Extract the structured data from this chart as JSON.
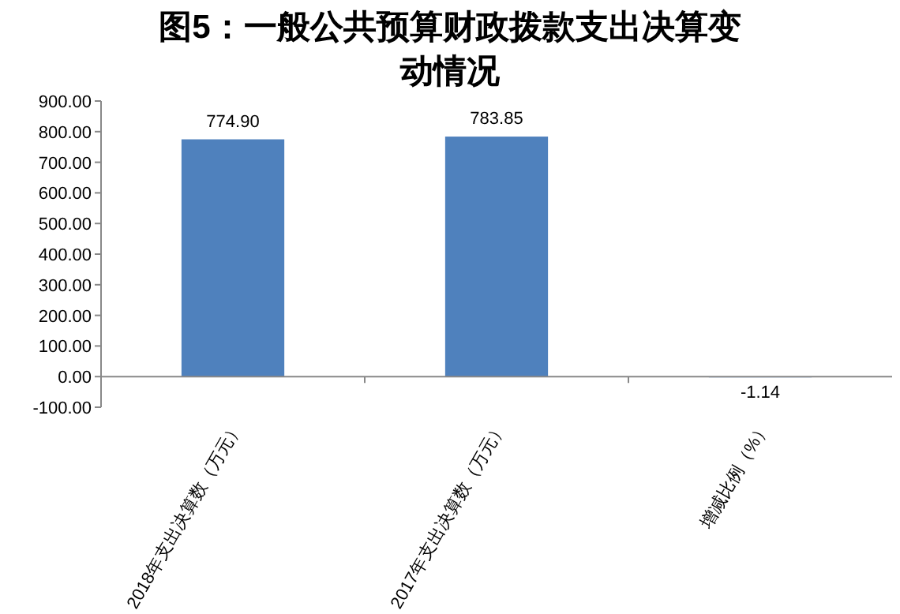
{
  "chart_data": {
    "type": "bar",
    "title": "图5：一般公共预算财政拨款支出决算变动情况",
    "categories": [
      "2018年支出决算数（万元）",
      "2017年支出决算数（万元）",
      "增减比例（%）"
    ],
    "values": [
      774.9,
      783.85,
      -1.14
    ],
    "value_labels": [
      "774.90",
      "783.85",
      "-1.14"
    ],
    "color": "#4f81bd",
    "ylim": [
      -100,
      900
    ],
    "yticks": [
      {
        "value": -100,
        "label": "-100.00"
      },
      {
        "value": 0,
        "label": "0.00"
      },
      {
        "value": 100,
        "label": "100.00"
      },
      {
        "value": 200,
        "label": "200.00"
      },
      {
        "value": 300,
        "label": "300.00"
      },
      {
        "value": 400,
        "label": "400.00"
      },
      {
        "value": 500,
        "label": "500.00"
      },
      {
        "value": 600,
        "label": "600.00"
      },
      {
        "value": 700,
        "label": "700.00"
      },
      {
        "value": 800,
        "label": "800.00"
      },
      {
        "value": 900,
        "label": "900.00"
      }
    ]
  }
}
